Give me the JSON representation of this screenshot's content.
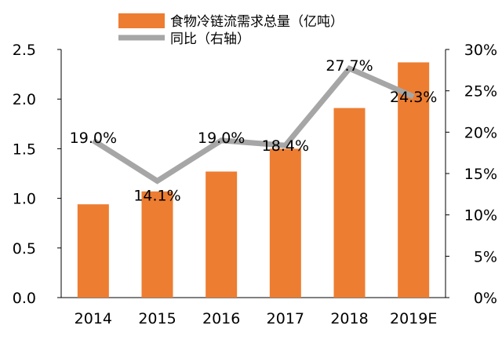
{
  "chart_data": {
    "type": "bar",
    "categories": [
      "2014",
      "2015",
      "2016",
      "2017",
      "2018",
      "2019E"
    ],
    "series": [
      {
        "name": "食物冷链流需求总量（亿吨）",
        "type": "bar",
        "axis": "left",
        "color": "#ED7D31",
        "values": [
          0.94,
          1.07,
          1.27,
          1.5,
          1.91,
          2.37
        ]
      },
      {
        "name": "同比（右轴）",
        "type": "line",
        "axis": "right",
        "color": "#A6A6A6",
        "values": [
          19.0,
          14.1,
          19.0,
          18.4,
          27.7,
          24.3
        ],
        "labels": [
          "19.0%",
          "14.1%",
          "19.0%",
          "18.4%",
          "27.7%",
          "24.3%"
        ]
      }
    ],
    "left_axis": {
      "ylim": [
        0,
        2.5
      ],
      "ticks": [
        "0.0",
        "0.5",
        "1.0",
        "1.5",
        "2.0",
        "2.5"
      ]
    },
    "right_axis": {
      "ylim": [
        0,
        30
      ],
      "ticks": [
        "0%",
        "5%",
        "10%",
        "15%",
        "20%",
        "25%",
        "30%"
      ]
    },
    "legend": {
      "position": "top"
    },
    "grid": false
  }
}
